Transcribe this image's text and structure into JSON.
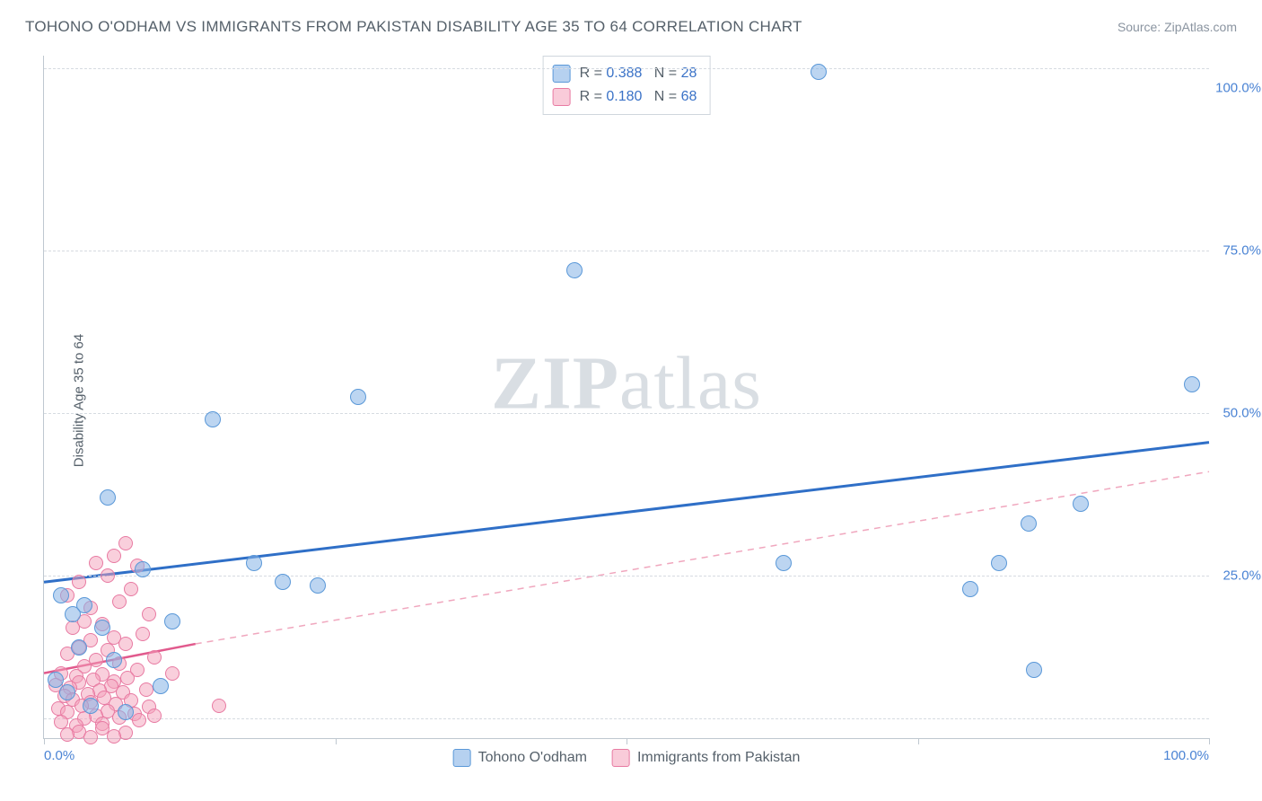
{
  "title": "TOHONO O'ODHAM VS IMMIGRANTS FROM PAKISTAN DISABILITY AGE 35 TO 64 CORRELATION CHART",
  "source": "Source: ZipAtlas.com",
  "ylabel": "Disability Age 35 to 64",
  "watermark_a": "ZIP",
  "watermark_b": "atlas",
  "chart": {
    "type": "scatter",
    "xlim": [
      0,
      100
    ],
    "ylim": [
      0,
      105
    ],
    "yticks": [
      {
        "v": 25,
        "label": "25.0%"
      },
      {
        "v": 50,
        "label": "50.0%"
      },
      {
        "v": 75,
        "label": "75.0%"
      },
      {
        "v": 100,
        "label": "100.0%"
      }
    ],
    "xtick_positions": [
      0,
      25,
      50,
      75,
      100
    ],
    "xtick_labels": [
      {
        "v": 0,
        "label": "0.0%"
      },
      {
        "v": 100,
        "label": "100.0%"
      }
    ],
    "hgridlines": [
      3,
      25,
      50,
      75,
      103
    ],
    "background_color": "#ffffff",
    "grid_color": "#d6dbe1",
    "axis_color": "#bfc8d0",
    "series": {
      "blue": {
        "label": "Tohono O'odham",
        "color_fill": "rgba(133,178,230,0.55)",
        "color_stroke": "#5a98d8",
        "marker_size": 18,
        "legend": {
          "R": "0.388",
          "N": "28"
        },
        "trend": {
          "solid": {
            "x1": 0,
            "y1": 24,
            "x2": 100,
            "y2": 45.5,
            "stroke": "#2f6fc7",
            "width": 3
          },
          "dash": null
        },
        "points": [
          [
            66.5,
            102.5
          ],
          [
            45.5,
            72
          ],
          [
            98.5,
            54.5
          ],
          [
            27,
            52.5
          ],
          [
            14.5,
            49
          ],
          [
            5.5,
            37
          ],
          [
            89,
            36
          ],
          [
            84.5,
            33
          ],
          [
            18,
            27
          ],
          [
            63.5,
            27
          ],
          [
            82,
            27
          ],
          [
            20.5,
            24
          ],
          [
            23.5,
            23.5
          ],
          [
            79.5,
            23
          ],
          [
            1.5,
            22
          ],
          [
            3.5,
            20.5
          ],
          [
            2.5,
            19
          ],
          [
            5,
            17
          ],
          [
            11,
            18
          ],
          [
            3,
            14
          ],
          [
            6,
            12
          ],
          [
            85,
            10.5
          ],
          [
            1,
            9
          ],
          [
            2,
            7
          ],
          [
            4,
            5
          ],
          [
            7,
            4
          ],
          [
            10,
            8
          ],
          [
            8.5,
            26
          ]
        ]
      },
      "pink": {
        "label": "Immigrants from Pakistan",
        "color_fill": "rgba(244,160,186,0.5)",
        "color_stroke": "#e87aa2",
        "marker_size": 16,
        "legend": {
          "R": "0.180",
          "N": "68"
        },
        "trend": {
          "solid": {
            "x1": 0,
            "y1": 10,
            "x2": 13,
            "y2": 14.5,
            "stroke": "#e15a8d",
            "width": 2.5
          },
          "dash": {
            "x1": 13,
            "y1": 14.5,
            "x2": 100,
            "y2": 41,
            "stroke": "#f0a7be",
            "width": 1.5,
            "dasharray": "7 6"
          }
        },
        "points": [
          [
            7,
            30
          ],
          [
            6,
            28
          ],
          [
            4.5,
            27
          ],
          [
            8,
            26.5
          ],
          [
            5.5,
            25
          ],
          [
            3,
            24
          ],
          [
            7.5,
            23
          ],
          [
            2,
            22
          ],
          [
            6.5,
            21
          ],
          [
            4,
            20
          ],
          [
            9,
            19
          ],
          [
            3.5,
            18
          ],
          [
            5,
            17.5
          ],
          [
            2.5,
            17
          ],
          [
            8.5,
            16
          ],
          [
            6,
            15.5
          ],
          [
            4,
            15
          ],
          [
            7,
            14.5
          ],
          [
            3,
            14
          ],
          [
            5.5,
            13.5
          ],
          [
            2,
            13
          ],
          [
            9.5,
            12.5
          ],
          [
            4.5,
            12
          ],
          [
            6.5,
            11.5
          ],
          [
            3.5,
            11
          ],
          [
            8,
            10.5
          ],
          [
            1.5,
            10
          ],
          [
            5,
            9.8
          ],
          [
            2.8,
            9.5
          ],
          [
            7.2,
            9.2
          ],
          [
            4.2,
            9
          ],
          [
            6,
            8.7
          ],
          [
            3,
            8.5
          ],
          [
            1,
            8.2
          ],
          [
            5.8,
            8
          ],
          [
            2.2,
            7.8
          ],
          [
            8.8,
            7.5
          ],
          [
            4.8,
            7.3
          ],
          [
            6.8,
            7
          ],
          [
            3.8,
            6.8
          ],
          [
            1.8,
            6.5
          ],
          [
            5.2,
            6.2
          ],
          [
            2.5,
            6
          ],
          [
            7.5,
            5.8
          ],
          [
            4,
            5.5
          ],
          [
            6.2,
            5.2
          ],
          [
            3.2,
            5
          ],
          [
            9,
            4.8
          ],
          [
            1.2,
            4.5
          ],
          [
            5.5,
            4.2
          ],
          [
            2,
            4
          ],
          [
            7.8,
            3.8
          ],
          [
            4.5,
            3.5
          ],
          [
            6.5,
            3.2
          ],
          [
            3.5,
            3
          ],
          [
            8.2,
            2.8
          ],
          [
            1.5,
            2.5
          ],
          [
            5,
            2.2
          ],
          [
            2.8,
            2
          ],
          [
            15,
            5
          ],
          [
            11,
            10
          ],
          [
            5,
            1.5
          ],
          [
            3,
            1
          ],
          [
            7,
            0.8
          ],
          [
            2,
            0.5
          ],
          [
            6,
            0.3
          ],
          [
            4,
            0.1
          ],
          [
            9.5,
            3.5
          ]
        ]
      }
    }
  },
  "legend_static": {
    "r_prefix": "R = ",
    "n_prefix": "N = "
  }
}
